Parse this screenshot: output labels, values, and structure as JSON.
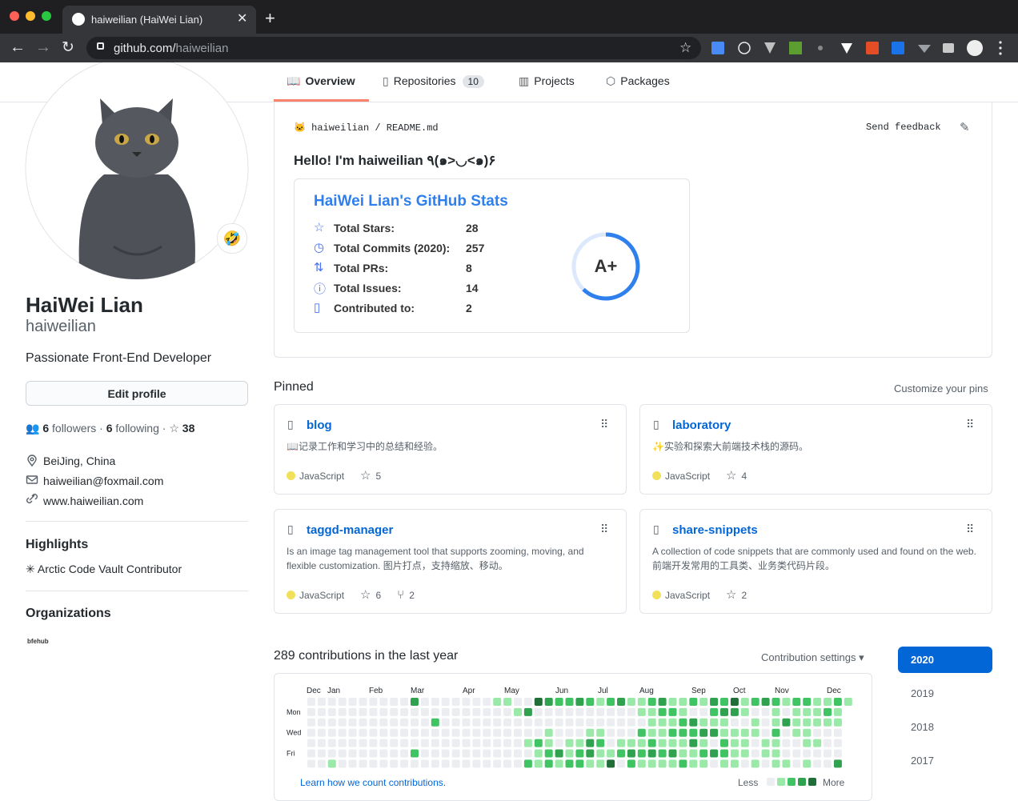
{
  "browser": {
    "tab_title": "haiweilian (HaiWei Lian)",
    "url_host": "github.com/",
    "url_path": "haiweilian"
  },
  "nav": {
    "tabs": [
      {
        "label": "Overview"
      },
      {
        "label": "Repositories",
        "count": 10
      },
      {
        "label": "Projects"
      },
      {
        "label": "Packages"
      }
    ]
  },
  "profile": {
    "name": "HaiWei Lian",
    "login": "haiweilian",
    "bio": "Passionate Front-End Developer",
    "edit_button": "Edit profile",
    "followers_count": 6,
    "followers_label": "followers",
    "following_count": 6,
    "following_label": "following",
    "stars": 38,
    "location": "BeiJing, China",
    "email": "haiweilian@foxmail.com",
    "website": "www.haiweilian.com",
    "highlights_title": "Highlights",
    "highlights": [
      "Arctic Code Vault Contributor"
    ],
    "organizations_title": "Organizations",
    "organization": "bfehub"
  },
  "readme": {
    "path_user": "haiweilian",
    "path_sep": "/",
    "path_file": "README.md",
    "feedback": "Send feedback",
    "greeting": "Hello! I'm haiweilian ٩(๑>◡<๑)۶",
    "stats": {
      "title": "HaiWei Lian's GitHub Stats",
      "rows": [
        {
          "label": "Total Stars:",
          "value": 28
        },
        {
          "label": "Total Commits (2020):",
          "value": 257
        },
        {
          "label": "Total PRs:",
          "value": 8
        },
        {
          "label": "Total Issues:",
          "value": 14
        },
        {
          "label": "Contributed to:",
          "value": 2
        }
      ],
      "rank": "A+"
    }
  },
  "pinned": {
    "title": "Pinned",
    "customize": "Customize your pins",
    "repos": [
      {
        "name": "blog",
        "description": "📖记录工作和学习中的总结和经验。",
        "language": "JavaScript",
        "stars": 5
      },
      {
        "name": "laboratory",
        "description": "✨实验和探索大前端技术栈的源码。",
        "language": "JavaScript",
        "stars": 4
      },
      {
        "name": "taggd-manager",
        "description": "Is an image tag management tool that supports zooming, moving, and flexible customization. 图片打点，支持缩放、移动。",
        "language": "JavaScript",
        "stars": 6,
        "forks": 2
      },
      {
        "name": "share-snippets",
        "description": "A collection of code snippets that are commonly used and found on the web. 前端开发常用的工具类、业务类代码片段。",
        "language": "JavaScript",
        "stars": 2
      }
    ]
  },
  "contributions": {
    "summary": "289 contributions in the last year",
    "settings": "Contribution settings ▾",
    "months": [
      "Dec",
      "Jan",
      "Feb",
      "Mar",
      "Apr",
      "May",
      "Jun",
      "Jul",
      "Aug",
      "Sep",
      "Oct",
      "Nov",
      "Dec"
    ],
    "days": [
      "Mon",
      "Wed",
      "Fri"
    ],
    "weeks": [
      [
        0,
        0,
        0,
        0,
        0,
        0,
        0
      ],
      [
        0,
        0,
        0,
        0,
        0,
        0,
        0
      ],
      [
        0,
        0,
        0,
        0,
        0,
        0,
        1
      ],
      [
        0,
        0,
        0,
        0,
        0,
        0,
        0
      ],
      [
        0,
        0,
        0,
        0,
        0,
        0,
        0
      ],
      [
        0,
        0,
        0,
        0,
        0,
        0,
        0
      ],
      [
        0,
        0,
        0,
        0,
        0,
        0,
        0
      ],
      [
        0,
        0,
        0,
        0,
        0,
        0,
        0
      ],
      [
        0,
        0,
        0,
        0,
        0,
        0,
        0
      ],
      [
        0,
        0,
        0,
        0,
        0,
        0,
        0
      ],
      [
        3,
        0,
        0,
        0,
        0,
        2,
        0
      ],
      [
        0,
        0,
        0,
        0,
        0,
        0,
        0
      ],
      [
        0,
        0,
        2,
        0,
        0,
        0,
        0
      ],
      [
        0,
        0,
        0,
        0,
        0,
        0,
        0
      ],
      [
        0,
        0,
        0,
        0,
        0,
        0,
        0
      ],
      [
        0,
        0,
        0,
        0,
        0,
        0,
        0
      ],
      [
        0,
        0,
        0,
        0,
        0,
        0,
        0
      ],
      [
        0,
        0,
        0,
        0,
        0,
        0,
        0
      ],
      [
        1,
        0,
        0,
        0,
        0,
        0,
        0
      ],
      [
        1,
        0,
        0,
        0,
        0,
        0,
        0
      ],
      [
        0,
        1,
        0,
        0,
        0,
        0,
        0
      ],
      [
        0,
        3,
        0,
        0,
        1,
        0,
        2
      ],
      [
        4,
        0,
        0,
        0,
        2,
        1,
        1
      ],
      [
        3,
        0,
        0,
        1,
        1,
        2,
        2
      ],
      [
        2,
        0,
        0,
        0,
        0,
        3,
        1
      ],
      [
        2,
        0,
        0,
        0,
        1,
        1,
        2
      ],
      [
        3,
        0,
        0,
        0,
        1,
        2,
        2
      ],
      [
        2,
        0,
        0,
        1,
        3,
        3,
        1
      ],
      [
        1,
        0,
        0,
        1,
        2,
        1,
        1
      ],
      [
        2,
        0,
        0,
        0,
        0,
        1,
        4
      ],
      [
        3,
        0,
        0,
        0,
        1,
        2,
        0
      ],
      [
        1,
        0,
        0,
        0,
        1,
        3,
        2
      ],
      [
        1,
        1,
        0,
        2,
        1,
        2,
        1
      ],
      [
        2,
        1,
        1,
        1,
        2,
        3,
        1
      ],
      [
        3,
        2,
        1,
        1,
        1,
        2,
        1
      ],
      [
        1,
        2,
        1,
        2,
        1,
        3,
        1
      ],
      [
        1,
        1,
        2,
        2,
        1,
        1,
        2
      ],
      [
        2,
        0,
        3,
        2,
        3,
        1,
        1
      ],
      [
        1,
        0,
        1,
        3,
        1,
        2,
        1
      ],
      [
        3,
        2,
        1,
        3,
        0,
        3,
        0
      ],
      [
        2,
        3,
        1,
        1,
        2,
        2,
        1
      ],
      [
        4,
        3,
        0,
        1,
        1,
        1,
        1
      ],
      [
        1,
        1,
        0,
        1,
        1,
        1,
        0
      ],
      [
        2,
        0,
        1,
        1,
        0,
        0,
        1
      ],
      [
        3,
        0,
        0,
        0,
        1,
        1,
        0
      ],
      [
        2,
        1,
        1,
        2,
        1,
        1,
        1
      ],
      [
        1,
        0,
        3,
        0,
        0,
        0,
        1
      ],
      [
        2,
        1,
        1,
        1,
        0,
        0,
        0
      ],
      [
        2,
        1,
        1,
        1,
        1,
        0,
        1
      ],
      [
        1,
        1,
        1,
        0,
        1,
        0,
        0
      ],
      [
        1,
        2,
        1,
        0,
        0,
        0,
        0
      ],
      [
        2,
        1,
        1,
        0,
        0,
        0,
        3
      ],
      [
        1
      ]
    ],
    "level_colors": [
      "#ebedf0",
      "#9be9a8",
      "#40c463",
      "#30a14e",
      "#216e39"
    ],
    "learn": "Learn how we count contributions.",
    "less": "Less",
    "more": "More",
    "years": [
      "2020",
      "2019",
      "2018",
      "2017"
    ]
  }
}
